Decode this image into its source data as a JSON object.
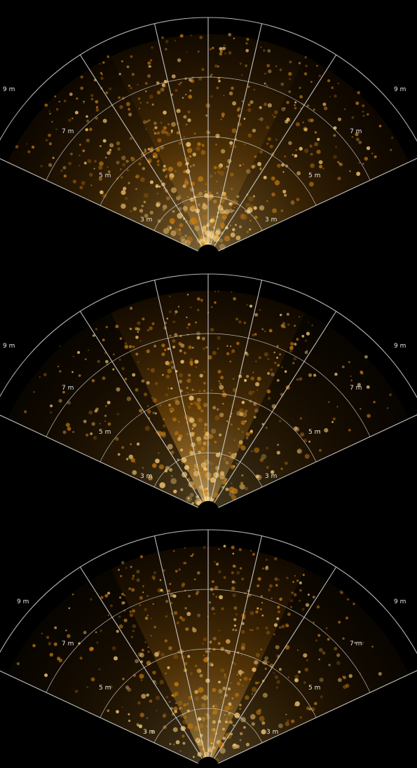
{
  "image": {
    "kind": "sonar-fan-scans",
    "palette": {
      "background": "#000000",
      "echo_dark": "#5a2e00",
      "echo_mid": "#c47a10",
      "echo_bright": "#ffd27a",
      "grid": "#e0e0e0"
    }
  },
  "panels": [
    {
      "id": "scan-1",
      "range_labels": {
        "r3": "3 m",
        "r5": "5 m",
        "r7": "7 m",
        "r9": "9 m"
      },
      "sectors": {
        "left": 0.55,
        "left_center": 0.75,
        "right_center": 0.7,
        "right": 0.5
      }
    },
    {
      "id": "scan-2",
      "range_labels": {
        "r3": "3 m",
        "r5": "5 m",
        "r7": "7 m",
        "r9": "9 m"
      },
      "sectors": {
        "left": 0.35,
        "left_center": 0.85,
        "right_center": 0.65,
        "right": 0.3
      }
    },
    {
      "id": "scan-3",
      "range_labels": {
        "r3": "3 m",
        "r5": "5 m",
        "r7": "7 m",
        "r9": "9 m"
      },
      "sectors": {
        "left": 0.3,
        "left_center": 0.7,
        "right_center": 0.75,
        "right": 0.35
      }
    }
  ]
}
